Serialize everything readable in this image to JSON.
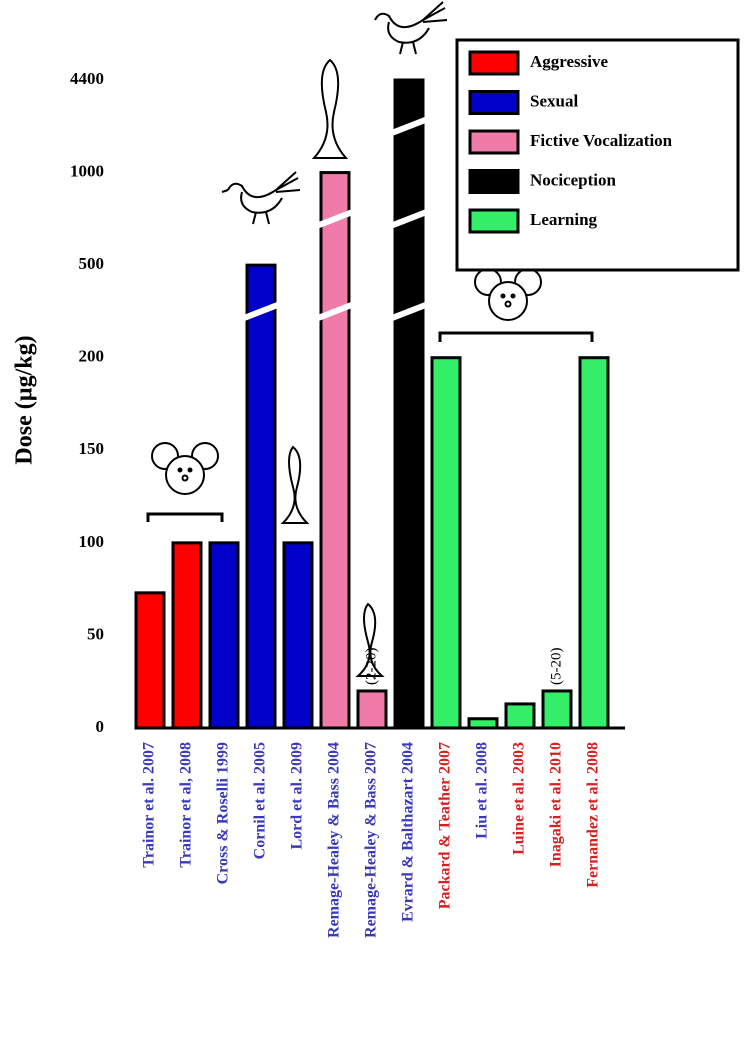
{
  "chart_data": {
    "type": "bar",
    "y_label": "Dose (µg/kg)",
    "categories": [
      "Trainor et al. 2007",
      "Trainor et al, 2008",
      "Cross & Roselli 1999",
      "Cornil et al. 2005",
      "Lord et al. 2009",
      "Remage-Healey & Bass 2004",
      "Remage-Healey & Bass 2007",
      "Evrard & Balthazart 2004",
      "Packard & Teather 2007",
      "Liu et al. 2008",
      "Luine et al. 2003",
      "Inagaki et al. 2010",
      "Fernandez et al. 2008"
    ],
    "category_colors": [
      "#3a3ab8",
      "#3a3ab8",
      "#3a3ab8",
      "#3a3ab8",
      "#3a3ab8",
      "#3a3ab8",
      "#3a3ab8",
      "#3a3ab8",
      "#d42020",
      "#3a3ab8",
      "#d42020",
      "#d42020",
      "#d42020"
    ],
    "series": [
      {
        "name": "Aggressive",
        "color": "#ff0000",
        "values": [
          73,
          100,
          null,
          null,
          null,
          null,
          null,
          null,
          null,
          null,
          null,
          null,
          null
        ]
      },
      {
        "name": "Sexual",
        "color": "#0000c8",
        "values": [
          null,
          null,
          100,
          500,
          100,
          null,
          null,
          null,
          null,
          null,
          null,
          null,
          null
        ]
      },
      {
        "name": "Fictive Vocalization",
        "color": "#f07aa8",
        "values": [
          null,
          null,
          null,
          null,
          null,
          1000,
          20,
          null,
          null,
          null,
          null,
          null,
          null
        ]
      },
      {
        "name": "Nociception",
        "color": "#000000",
        "values": [
          null,
          null,
          null,
          null,
          null,
          null,
          null,
          4400,
          null,
          null,
          null,
          null,
          null
        ]
      },
      {
        "name": "Learning",
        "color": "#33ee66",
        "values": [
          null,
          null,
          null,
          null,
          null,
          null,
          null,
          null,
          200,
          5,
          13,
          20,
          200
        ]
      }
    ],
    "annotations": [
      {
        "text": "(2-20)",
        "category": "Remage-Healey & Bass 2007"
      },
      {
        "text": "(5-20)",
        "category": "Inagaki et al. 2010"
      }
    ],
    "ylim": [
      0,
      4400
    ],
    "yticks": [
      0,
      50,
      100,
      150,
      200,
      500,
      1000,
      4400
    ],
    "broken_axis": true,
    "legend": "top-right"
  }
}
